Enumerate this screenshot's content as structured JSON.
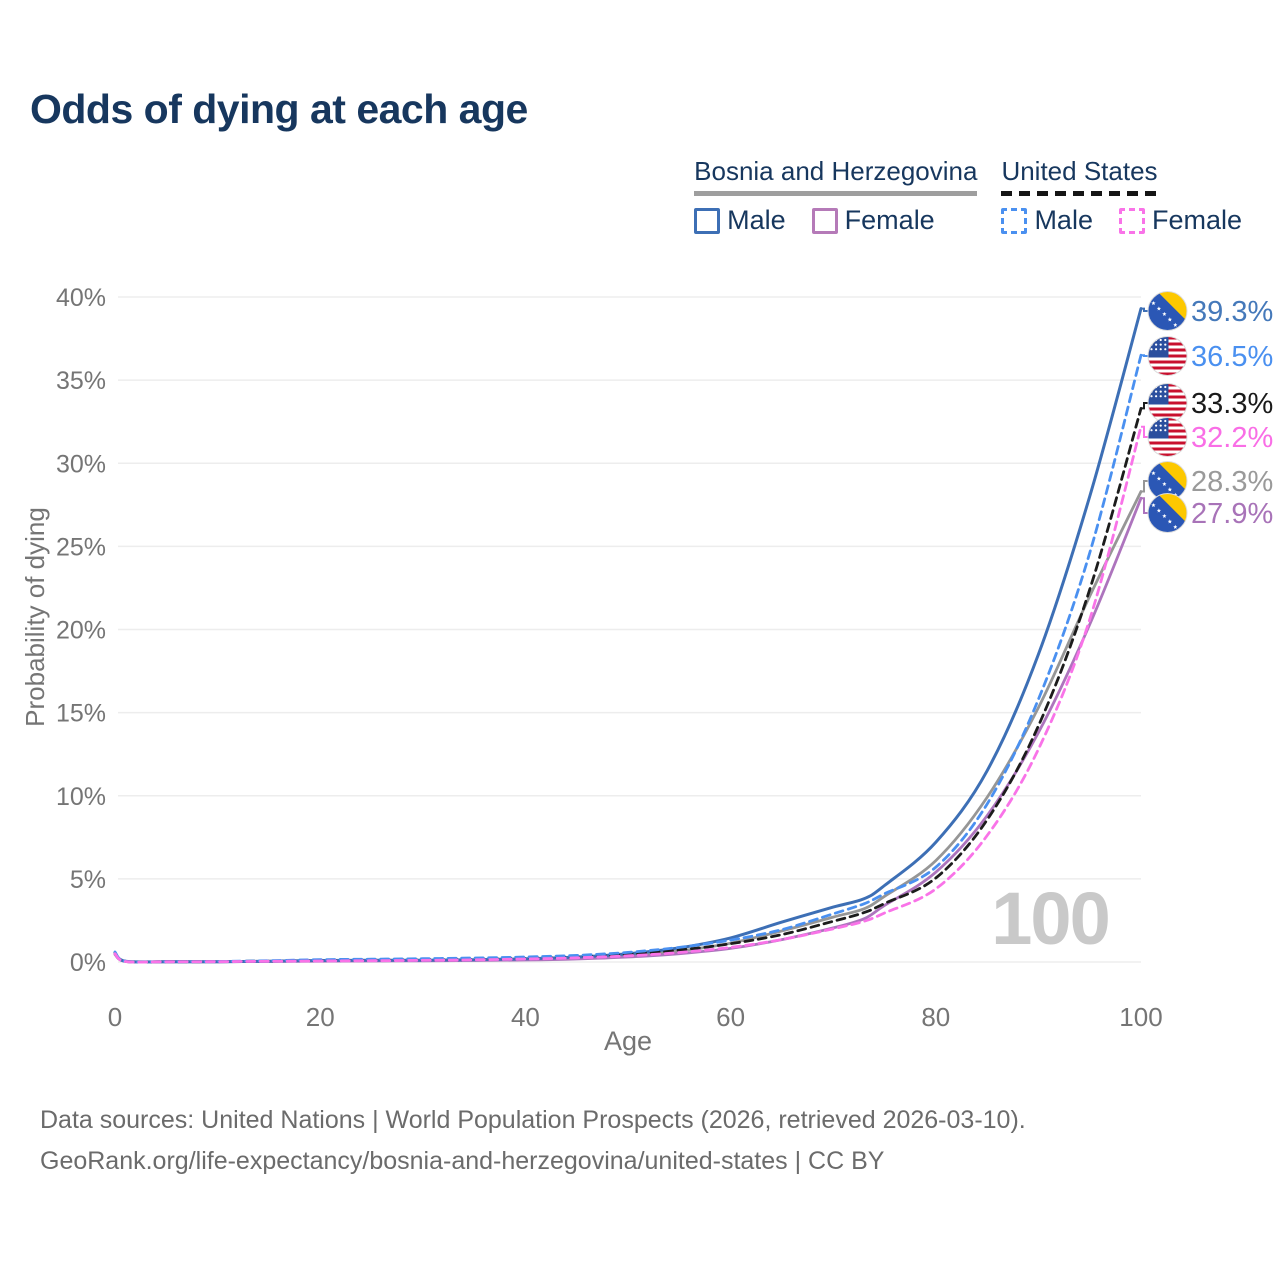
{
  "title": "Odds of dying at each age",
  "title_color": "#17375e",
  "watermark": "100",
  "legend": {
    "groups": [
      {
        "name": "Bosnia and Herzegovina",
        "line_style": "solid",
        "underline_color": "#9e9e9e",
        "items": [
          {
            "label": "Male",
            "color": "#3d6fb5",
            "swatch_style": "solid"
          },
          {
            "label": "Female",
            "color": "#b57ab8",
            "swatch_style": "solid"
          }
        ]
      },
      {
        "name": "United States",
        "line_style": "dashed",
        "underline_color": "#151515",
        "items": [
          {
            "label": "Male",
            "color": "#4a90f0",
            "swatch_style": "dashed"
          },
          {
            "label": "Female",
            "color": "#f973e8",
            "swatch_style": "dashed"
          }
        ]
      }
    ]
  },
  "chart_data": {
    "type": "line",
    "title": "Odds of dying at each age",
    "xlabel": "Age",
    "ylabel": "Probability of dying",
    "grid": "horizontal",
    "xlim": [
      0,
      100
    ],
    "ylim": [
      0,
      40
    ],
    "x_ticks": [
      "0",
      "20",
      "40",
      "60",
      "80",
      "100"
    ],
    "x_tick_values": [
      0,
      20,
      40,
      60,
      80,
      100
    ],
    "y_ticks": [
      "0%",
      "5%",
      "10%",
      "15%",
      "20%",
      "25%",
      "30%",
      "35%",
      "40%"
    ],
    "y_tick_values": [
      0,
      5,
      10,
      15,
      20,
      25,
      30,
      35,
      40
    ],
    "ages": [
      0,
      1,
      5,
      10,
      15,
      20,
      25,
      30,
      35,
      40,
      45,
      50,
      55,
      60,
      65,
      70,
      73,
      75,
      80,
      85,
      90,
      95,
      100
    ],
    "series": [
      {
        "id": "bosnia-total",
        "country": "Bosnia and Herzegovina",
        "sex": "Total",
        "color": "#969696",
        "dash": false,
        "flag": "ba",
        "end_value": 28.3,
        "end_label": "28.3%",
        "label_color": "#9a9a9a",
        "values": [
          0.5,
          0.045,
          0.018,
          0.018,
          0.04,
          0.07,
          0.08,
          0.09,
          0.115,
          0.155,
          0.24,
          0.4,
          0.67,
          1.13,
          1.87,
          2.7,
          3.2,
          3.95,
          6.1,
          9.9,
          15.3,
          22.0,
          28.3
        ]
      },
      {
        "id": "bosnia-female",
        "country": "Bosnia and Herzegovina",
        "sex": "Female",
        "color": "#ad74bd",
        "dash": false,
        "flag": "ba",
        "end_value": 27.9,
        "end_label": "27.9%",
        "label_color": "#a873b8",
        "values": [
          0.45,
          0.04,
          0.015,
          0.015,
          0.03,
          0.05,
          0.06,
          0.07,
          0.09,
          0.12,
          0.18,
          0.3,
          0.5,
          0.82,
          1.35,
          2.05,
          2.6,
          3.4,
          5.4,
          8.8,
          13.8,
          20.3,
          27.9
        ]
      },
      {
        "id": "bosnia-male",
        "country": "Bosnia and Herzegovina",
        "sex": "Male",
        "color": "#3d6fb5",
        "dash": false,
        "flag": "ba",
        "end_value": 39.3,
        "end_label": "39.3%",
        "label_color": "#4579ba",
        "values": [
          0.55,
          0.05,
          0.02,
          0.02,
          0.05,
          0.09,
          0.1,
          0.11,
          0.14,
          0.19,
          0.3,
          0.5,
          0.85,
          1.45,
          2.4,
          3.3,
          3.8,
          4.6,
          7.2,
          11.5,
          18.5,
          28.0,
          39.3
        ]
      },
      {
        "id": "us-total",
        "country": "United States",
        "sex": "Total",
        "color": "#1c1c1c",
        "dash": true,
        "flag": "us",
        "end_value": 33.3,
        "end_label": "33.3%",
        "label_color": "#1a1a1a",
        "values": [
          0.55,
          0.035,
          0.018,
          0.025,
          0.06,
          0.1,
          0.125,
          0.15,
          0.185,
          0.24,
          0.32,
          0.47,
          0.72,
          1.1,
          1.65,
          2.45,
          2.97,
          3.52,
          5.05,
          8.55,
          14.2,
          22.4,
          33.3
        ]
      },
      {
        "id": "us-male",
        "country": "United States",
        "sex": "Male",
        "color": "#4a90f0",
        "dash": true,
        "flag": "us",
        "end_value": 36.5,
        "end_label": "36.5%",
        "label_color": "#4a90f0",
        "values": [
          0.6,
          0.04,
          0.02,
          0.03,
          0.08,
          0.14,
          0.17,
          0.2,
          0.24,
          0.3,
          0.4,
          0.58,
          0.88,
          1.32,
          1.95,
          2.9,
          3.5,
          4.1,
          5.7,
          9.5,
          15.8,
          24.6,
          36.5
        ]
      },
      {
        "id": "us-female",
        "country": "United States",
        "sex": "Female",
        "color": "#f973e8",
        "dash": true,
        "flag": "us",
        "end_value": 32.2,
        "end_label": "32.2%",
        "label_color": "#f96ee6",
        "values": [
          0.5,
          0.03,
          0.015,
          0.02,
          0.04,
          0.06,
          0.08,
          0.1,
          0.13,
          0.18,
          0.25,
          0.37,
          0.57,
          0.88,
          1.35,
          2.0,
          2.45,
          2.95,
          4.4,
          7.6,
          12.8,
          20.6,
          32.2
        ]
      }
    ],
    "colors": {
      "grid": "#ededed",
      "axis_text": "#757575",
      "watermark": "#c9c9c9",
      "ba_flag_blue": "#2b57b5",
      "ba_flag_yellow": "#fdc800",
      "us_flag_red": "#c8102e",
      "us_flag_blue": "#2b4f9e"
    }
  },
  "footer": {
    "line1": "Data sources: United Nations | World Population Prospects (2026, retrieved 2026-03-10).",
    "line2": "GeoRank.org/life-expectancy/bosnia-and-herzegovina/united-states | CC BY"
  }
}
